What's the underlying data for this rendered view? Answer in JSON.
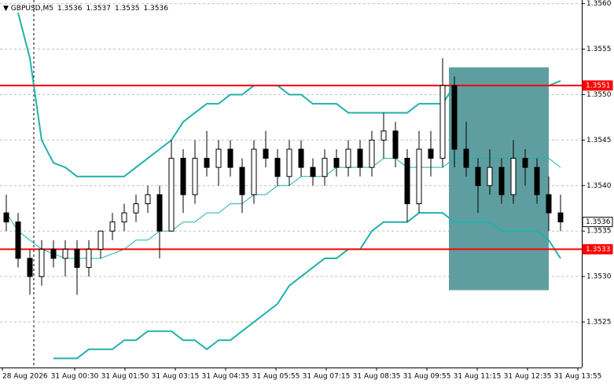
{
  "chart_data": {
    "type": "candlestick",
    "header": {
      "symbol": "GBPUSD,M5",
      "ohlc": [
        1.3536,
        1.3537,
        1.3535,
        1.3536
      ]
    },
    "x_labels": [
      "28 Aug 2026",
      "31 Aug 00:30",
      "31 Aug 01:50",
      "31 Aug 03:15",
      "31 Aug 04:35",
      "31 Aug 05:55",
      "31 Aug 07:15",
      "31 Aug 08:35",
      "31 Aug 09:55",
      "31 Aug 11:15",
      "31 Aug 12:35",
      "31 Aug 13:55"
    ],
    "ylim": [
      1.352,
      1.35604
    ],
    "yticks": [
      1.3525,
      {
        "value": 1.353,
        "label": "1.3530"
      },
      1.3535,
      {
        "value": 1.354,
        "label": "1.3540"
      },
      1.3545,
      {
        "value": 1.355,
        "label": "1.3550"
      },
      1.3555,
      {
        "value": 1.356,
        "label": "1.3560"
      }
    ],
    "candles": {
      "open": [
        1.3537,
        1.3536,
        1.3532,
        1.353,
        1.3533,
        1.3532,
        1.3533,
        1.3531,
        1.3533,
        1.3535,
        1.3536,
        1.3537,
        1.3538,
        1.3539,
        1.3535,
        1.3543,
        1.3539,
        1.3543,
        1.3542,
        1.3544,
        1.3542,
        1.3539,
        1.3544,
        1.3543,
        1.3541,
        1.3544,
        1.3542,
        1.3541,
        1.3543,
        1.3542,
        1.3544,
        1.3542,
        1.3545,
        1.3546,
        1.3543,
        1.3538,
        1.3544,
        1.3543,
        1.3551,
        1.3544,
        1.3542,
        1.354,
        1.3542,
        1.3539,
        1.3543,
        1.3542,
        1.3539,
        1.3537
      ],
      "high": [
        1.3539,
        1.3537,
        1.3533,
        1.3534,
        1.3534,
        1.3534,
        1.3534,
        1.3534,
        1.3535,
        1.3537,
        1.3538,
        1.3539,
        1.354,
        1.354,
        1.3545,
        1.3544,
        1.3545,
        1.3546,
        1.3545,
        1.3545,
        1.3543,
        1.3545,
        1.3546,
        1.3544,
        1.3545,
        1.3545,
        1.3543,
        1.3544,
        1.3544,
        1.3545,
        1.3545,
        1.3546,
        1.3548,
        1.3547,
        1.3544,
        1.3546,
        1.3546,
        1.3554,
        1.3552,
        1.3547,
        1.3543,
        1.3544,
        1.3543,
        1.3545,
        1.3544,
        1.3543,
        1.3541,
        1.3539
      ],
      "low": [
        1.3535,
        1.3531,
        1.3528,
        1.3529,
        1.3531,
        1.353,
        1.3528,
        1.353,
        1.3532,
        1.3534,
        1.3535,
        1.3536,
        1.3537,
        1.3532,
        1.3535,
        1.3537,
        1.3538,
        1.3541,
        1.354,
        1.3541,
        1.3537,
        1.3538,
        1.3542,
        1.354,
        1.354,
        1.3541,
        1.354,
        1.354,
        1.3541,
        1.3541,
        1.3541,
        1.3541,
        1.3543,
        1.3542,
        1.3536,
        1.3537,
        1.3541,
        1.3542,
        1.3542,
        1.3541,
        1.3537,
        1.3539,
        1.3538,
        1.3538,
        1.354,
        1.3538,
        1.3535,
        1.3535
      ],
      "close": [
        1.3536,
        1.3532,
        1.353,
        1.3533,
        1.3532,
        1.3533,
        1.3531,
        1.3533,
        1.3535,
        1.3536,
        1.3537,
        1.3538,
        1.3539,
        1.3535,
        1.3543,
        1.3539,
        1.3543,
        1.3542,
        1.3544,
        1.3542,
        1.3539,
        1.3544,
        1.3543,
        1.3541,
        1.3544,
        1.3542,
        1.3541,
        1.3543,
        1.3542,
        1.3544,
        1.3542,
        1.3545,
        1.3546,
        1.3543,
        1.3538,
        1.3544,
        1.3543,
        1.3551,
        1.3544,
        1.3542,
        1.354,
        1.3542,
        1.3539,
        1.3543,
        1.3542,
        1.3539,
        1.3537,
        1.3536
      ]
    },
    "bands": {
      "color": "#20b2aa",
      "upper": [
        null,
        1.3559,
        1.3554,
        1.3545,
        1.35425,
        1.3542,
        1.3541,
        1.3541,
        1.3541,
        1.3541,
        1.3541,
        1.3542,
        1.3543,
        1.3544,
        1.3545,
        1.3547,
        1.3548,
        1.3549,
        1.3549,
        1.355,
        1.355,
        1.3551,
        1.3551,
        1.3551,
        1.355,
        1.355,
        1.3549,
        1.3549,
        1.3549,
        1.3548,
        1.3548,
        1.3548,
        1.3548,
        1.3548,
        1.3548,
        1.3549,
        1.3549,
        1.3549,
        1.3551,
        1.3551,
        1.3551,
        1.3551,
        1.3551,
        1.3551,
        1.3551,
        1.3551,
        1.3551,
        1.35515
      ],
      "middle": [
        1.3537,
        1.3535,
        1.3534,
        1.3533,
        1.35325,
        1.3532,
        1.3532,
        1.3532,
        1.3532,
        1.35325,
        1.3533,
        1.3534,
        1.3534,
        1.3535,
        1.3535,
        1.3536,
        1.3536,
        1.3537,
        1.3537,
        1.3538,
        1.3538,
        1.3539,
        1.3539,
        1.354,
        1.354,
        1.3541,
        1.3541,
        1.3541,
        1.3542,
        1.3542,
        1.3542,
        1.3542,
        1.3543,
        1.3543,
        1.3542,
        1.3542,
        1.3542,
        1.3542,
        1.3543,
        1.3543,
        1.3543,
        1.3543,
        1.3543,
        1.3543,
        1.3543,
        1.3543,
        1.3543,
        1.3542
      ],
      "lower": [
        null,
        null,
        null,
        null,
        1.3521,
        1.3521,
        1.3521,
        1.3522,
        1.3522,
        1.3522,
        1.3523,
        1.3523,
        1.3524,
        1.3524,
        1.3524,
        1.3523,
        1.3523,
        1.3522,
        1.3523,
        1.3523,
        1.3524,
        1.3525,
        1.3526,
        1.3527,
        1.3529,
        1.353,
        1.3531,
        1.3532,
        1.3532,
        1.3533,
        1.3533,
        1.3535,
        1.3536,
        1.3536,
        1.3536,
        1.3537,
        1.3537,
        1.3537,
        1.3536,
        1.3536,
        1.3536,
        1.3536,
        1.3535,
        1.3535,
        1.3535,
        1.3535,
        1.3534,
        1.3532
      ]
    },
    "levels": [
      {
        "value": 1.3551,
        "color": "#ff0000"
      },
      {
        "value": 1.3533,
        "color": "#ff0000"
      }
    ],
    "current_price": 1.3536,
    "box": {
      "top": 1.3553,
      "bottom": 1.35285,
      "color": "#5f9ea0"
    }
  }
}
